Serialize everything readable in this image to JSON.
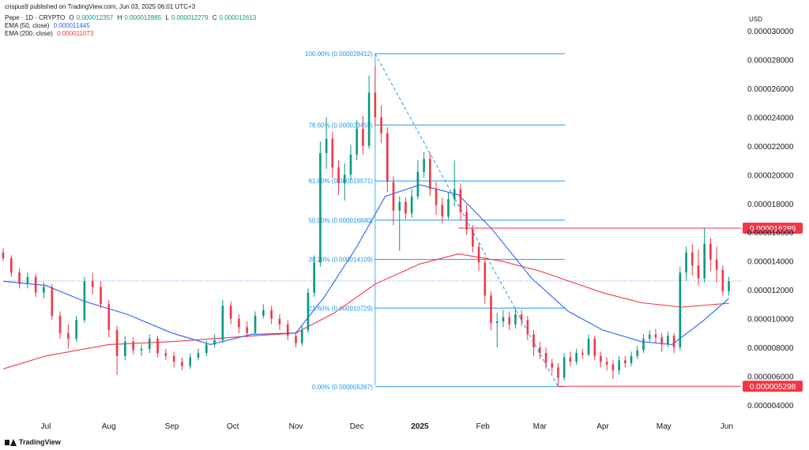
{
  "header": {
    "published": "crispus9 published on TradingView.com, Jun 03, 2025 06:01 UTC+3",
    "symbol": "Pepe · 1D · CRYPTO",
    "o_label": "O",
    "o_value": "0.000012357",
    "h_label": "H",
    "h_value": "0.000012885",
    "l_label": "L",
    "l_value": "0.000012279",
    "c_label": "C",
    "c_value": "0.000012613",
    "ema50_label": "EMA (50, close)",
    "ema50_value": "0.000011445",
    "ema200_label": "EMA (200, close)",
    "ema200_value": "0.000011073",
    "currency": "USD"
  },
  "footer": {
    "brand": "TradingView"
  },
  "colors": {
    "up": "#089981",
    "down": "#f23645",
    "ema50": "#2962ff",
    "ema200": "#f23645",
    "fib": "#2196f3",
    "hline": "#f23645"
  },
  "chart_data": {
    "type": "candlestick",
    "y_labels": [
      "0.000030000",
      "0.000028000",
      "0.000026000",
      "0.000024000",
      "0.000022000",
      "0.000020000",
      "0.000018000",
      "0.000016000",
      "0.000014000",
      "0.000012000",
      "0.000010000",
      "0.000008000",
      "0.000006000",
      "0.000004000"
    ],
    "y_values": [
      30.0,
      28.0,
      26.0,
      24.0,
      22.0,
      20.0,
      18.0,
      16.0,
      14.0,
      12.0,
      10.0,
      8.0,
      6.0,
      4.0
    ],
    "y_unit_scale": "1e-6",
    "ylim": [
      3.5,
      30.5
    ],
    "x_labels": [
      "Jul",
      "Aug",
      "Sep",
      "Oct",
      "Nov",
      "Dec",
      "2025",
      "Feb",
      "Mar",
      "Apr",
      "May",
      "Jun"
    ],
    "x_label_dates": [
      "2024-07-01",
      "2024-08-01",
      "2024-09-01",
      "2024-10-01",
      "2024-11-01",
      "2024-12-01",
      "2025-01-01",
      "2025-02-01",
      "2025-03-01",
      "2025-04-01",
      "2025-05-01",
      "2025-06-01"
    ],
    "x_range": [
      "2024-06-10",
      "2025-06-08"
    ],
    "candles": [
      [
        "2024-06-10",
        14.6,
        14.2,
        14.9,
        14.0
      ],
      [
        "2024-06-14",
        14.2,
        13.2,
        14.4,
        12.9
      ],
      [
        "2024-06-18",
        13.2,
        12.4,
        13.5,
        12.1
      ],
      [
        "2024-06-22",
        12.4,
        12.9,
        13.2,
        12.1
      ],
      [
        "2024-06-26",
        12.9,
        11.8,
        13.1,
        11.5
      ],
      [
        "2024-06-30",
        11.8,
        12.2,
        12.5,
        11.4
      ],
      [
        "2024-07-04",
        12.2,
        10.2,
        12.4,
        9.9
      ],
      [
        "2024-07-08",
        10.2,
        9.0,
        10.5,
        8.6
      ],
      [
        "2024-07-12",
        9.0,
        8.6,
        9.6,
        7.9
      ],
      [
        "2024-07-16",
        8.6,
        9.9,
        10.2,
        8.4
      ],
      [
        "2024-07-20",
        9.9,
        12.6,
        12.9,
        9.7
      ],
      [
        "2024-07-24",
        12.6,
        12.2,
        13.2,
        11.7
      ],
      [
        "2024-07-28",
        12.2,
        11.0,
        12.6,
        10.7
      ],
      [
        "2024-08-01",
        11.0,
        9.2,
        11.3,
        8.7
      ],
      [
        "2024-08-05",
        9.2,
        7.4,
        9.5,
        6.1
      ],
      [
        "2024-08-09",
        7.4,
        8.4,
        8.8,
        7.1
      ],
      [
        "2024-08-13",
        8.4,
        7.8,
        8.7,
        7.5
      ],
      [
        "2024-08-17",
        7.8,
        7.9,
        8.2,
        7.4
      ],
      [
        "2024-08-21",
        7.9,
        8.6,
        8.9,
        7.6
      ],
      [
        "2024-08-25",
        8.6,
        7.6,
        8.8,
        7.3
      ],
      [
        "2024-08-29",
        7.6,
        7.4,
        7.9,
        7.1
      ],
      [
        "2024-09-02",
        7.4,
        7.0,
        7.7,
        6.6
      ],
      [
        "2024-09-06",
        7.0,
        6.7,
        7.3,
        6.4
      ],
      [
        "2024-09-10",
        6.7,
        7.3,
        7.6,
        6.5
      ],
      [
        "2024-09-14",
        7.3,
        7.6,
        7.9,
        7.1
      ],
      [
        "2024-09-18",
        7.6,
        8.2,
        8.5,
        7.4
      ],
      [
        "2024-09-22",
        8.2,
        8.5,
        8.9,
        8.0
      ],
      [
        "2024-09-26",
        8.5,
        10.9,
        11.3,
        8.3
      ],
      [
        "2024-09-30",
        10.9,
        10.0,
        11.2,
        9.6
      ],
      [
        "2024-10-04",
        10.0,
        9.4,
        10.3,
        9.0
      ],
      [
        "2024-10-08",
        9.4,
        9.0,
        9.8,
        8.7
      ],
      [
        "2024-10-12",
        9.0,
        10.2,
        10.5,
        8.9
      ],
      [
        "2024-10-16",
        10.2,
        10.6,
        11.0,
        10.0
      ],
      [
        "2024-10-20",
        10.6,
        10.0,
        10.9,
        9.6
      ],
      [
        "2024-10-24",
        10.0,
        9.6,
        10.3,
        9.2
      ],
      [
        "2024-10-28",
        9.6,
        8.8,
        9.9,
        8.5
      ],
      [
        "2024-11-01",
        8.8,
        8.3,
        9.1,
        8.0
      ],
      [
        "2024-11-04",
        8.3,
        9.2,
        9.5,
        8.1
      ],
      [
        "2024-11-07",
        9.2,
        11.8,
        12.1,
        9.0
      ],
      [
        "2024-11-10",
        11.8,
        13.9,
        14.4,
        11.5
      ],
      [
        "2024-11-13",
        13.9,
        21.5,
        22.3,
        13.6
      ],
      [
        "2024-11-16",
        21.5,
        22.5,
        24.0,
        20.4
      ],
      [
        "2024-11-19",
        22.5,
        20.5,
        23.0,
        19.8
      ],
      [
        "2024-11-22",
        20.5,
        19.4,
        21.0,
        18.6
      ],
      [
        "2024-11-25",
        19.4,
        20.0,
        20.8,
        18.2
      ],
      [
        "2024-11-28",
        20.0,
        21.4,
        22.1,
        19.6
      ],
      [
        "2024-12-01",
        21.4,
        23.2,
        23.8,
        21.0
      ],
      [
        "2024-12-04",
        23.2,
        22.0,
        24.1,
        21.4
      ],
      [
        "2024-12-07",
        22.0,
        25.7,
        26.9,
        21.8
      ],
      [
        "2024-12-10",
        25.7,
        24.0,
        27.6,
        23.3
      ],
      [
        "2024-12-13",
        24.0,
        22.9,
        24.8,
        22.2
      ],
      [
        "2024-12-16",
        22.9,
        19.5,
        23.3,
        18.8
      ],
      [
        "2024-12-19",
        19.5,
        17.5,
        19.9,
        16.5
      ],
      [
        "2024-12-22",
        17.5,
        18.1,
        18.5,
        14.7
      ],
      [
        "2024-12-25",
        18.1,
        17.3,
        18.4,
        16.9
      ],
      [
        "2024-12-28",
        17.3,
        18.5,
        19.0,
        17.0
      ],
      [
        "2024-12-31",
        18.5,
        20.2,
        21.0,
        18.3
      ],
      [
        "2025-01-03",
        20.2,
        21.1,
        21.6,
        19.8
      ],
      [
        "2025-01-06",
        21.1,
        19.0,
        21.5,
        18.5
      ],
      [
        "2025-01-09",
        19.0,
        17.9,
        19.5,
        17.2
      ],
      [
        "2025-01-12",
        17.9,
        17.1,
        18.4,
        16.6
      ],
      [
        "2025-01-15",
        17.1,
        18.3,
        18.8,
        16.9
      ],
      [
        "2025-01-18",
        18.3,
        19.0,
        21.0,
        17.8
      ],
      [
        "2025-01-21",
        19.0,
        17.4,
        19.4,
        16.8
      ],
      [
        "2025-01-24",
        17.4,
        16.2,
        17.9,
        15.8
      ],
      [
        "2025-01-27",
        16.2,
        15.0,
        16.5,
        14.6
      ],
      [
        "2025-01-30",
        15.0,
        13.9,
        15.3,
        13.3
      ],
      [
        "2025-02-02",
        13.9,
        11.6,
        14.1,
        11.0
      ],
      [
        "2025-02-05",
        11.6,
        9.7,
        11.9,
        9.2
      ],
      [
        "2025-02-08",
        9.7,
        9.8,
        10.4,
        8.0
      ],
      [
        "2025-02-11",
        9.8,
        10.1,
        10.6,
        9.4
      ],
      [
        "2025-02-14",
        10.1,
        9.6,
        10.5,
        9.2
      ],
      [
        "2025-02-17",
        9.6,
        10.3,
        10.7,
        9.3
      ],
      [
        "2025-02-20",
        10.3,
        9.9,
        10.6,
        9.5
      ],
      [
        "2025-02-23",
        9.9,
        8.9,
        10.2,
        8.5
      ],
      [
        "2025-02-26",
        8.9,
        8.0,
        9.2,
        7.4
      ],
      [
        "2025-03-01",
        8.0,
        7.6,
        8.4,
        7.2
      ],
      [
        "2025-03-04",
        7.6,
        6.9,
        8.0,
        6.5
      ],
      [
        "2025-03-07",
        6.9,
        6.6,
        7.2,
        6.2
      ],
      [
        "2025-03-10",
        6.6,
        5.9,
        6.9,
        5.3
      ],
      [
        "2025-03-13",
        5.9,
        7.3,
        7.6,
        5.7
      ],
      [
        "2025-03-16",
        7.3,
        7.0,
        7.7,
        6.7
      ],
      [
        "2025-03-19",
        7.0,
        7.6,
        7.9,
        6.8
      ],
      [
        "2025-03-22",
        7.6,
        7.5,
        7.9,
        7.2
      ],
      [
        "2025-03-25",
        7.5,
        8.6,
        8.9,
        7.4
      ],
      [
        "2025-03-28",
        8.6,
        7.4,
        8.8,
        7.1
      ],
      [
        "2025-03-31",
        7.4,
        7.0,
        7.7,
        6.6
      ],
      [
        "2025-04-03",
        7.0,
        6.8,
        7.3,
        6.4
      ],
      [
        "2025-04-06",
        6.8,
        6.4,
        7.1,
        5.8
      ],
      [
        "2025-04-09",
        6.4,
        7.1,
        7.4,
        6.1
      ],
      [
        "2025-04-12",
        7.1,
        6.9,
        7.4,
        6.6
      ],
      [
        "2025-04-15",
        6.9,
        7.4,
        7.7,
        6.7
      ],
      [
        "2025-04-18",
        7.4,
        7.8,
        8.1,
        7.2
      ],
      [
        "2025-04-21",
        7.8,
        8.6,
        8.9,
        7.6
      ],
      [
        "2025-04-24",
        8.6,
        8.9,
        9.2,
        8.4
      ],
      [
        "2025-04-27",
        8.9,
        8.7,
        9.3,
        8.3
      ],
      [
        "2025-04-30",
        8.7,
        8.2,
        9.0,
        7.7
      ],
      [
        "2025-05-03",
        8.2,
        8.8,
        9.1,
        8.0
      ],
      [
        "2025-05-06",
        8.8,
        8.0,
        9.0,
        7.6
      ],
      [
        "2025-05-09",
        8.0,
        13.2,
        13.6,
        7.8
      ],
      [
        "2025-05-12",
        13.2,
        14.6,
        15.0,
        12.6
      ],
      [
        "2025-05-15",
        14.6,
        13.7,
        15.2,
        13.0
      ],
      [
        "2025-05-18",
        13.7,
        12.8,
        14.8,
        12.3
      ],
      [
        "2025-05-21",
        12.8,
        15.2,
        16.3,
        12.5
      ],
      [
        "2025-05-24",
        15.2,
        14.1,
        15.6,
        13.3
      ],
      [
        "2025-05-27",
        14.1,
        13.4,
        15.0,
        12.5
      ],
      [
        "2025-05-30",
        13.4,
        11.9,
        13.7,
        11.6
      ],
      [
        "2025-06-02",
        11.9,
        12.6,
        12.9,
        11.6
      ]
    ],
    "ema50": [
      [
        "2024-06-10",
        12.6
      ],
      [
        "2024-07-01",
        12.3
      ],
      [
        "2024-07-20",
        11.2
      ],
      [
        "2024-08-10",
        10.3
      ],
      [
        "2024-09-01",
        9.0
      ],
      [
        "2024-09-20",
        8.2
      ],
      [
        "2024-10-10",
        8.9
      ],
      [
        "2024-11-01",
        9.0
      ],
      [
        "2024-11-15",
        11.5
      ],
      [
        "2024-12-01",
        15.0
      ],
      [
        "2024-12-15",
        18.5
      ],
      [
        "2025-01-01",
        19.3
      ],
      [
        "2025-01-20",
        18.6
      ],
      [
        "2025-02-05",
        16.3
      ],
      [
        "2025-02-25",
        12.8
      ],
      [
        "2025-03-15",
        10.5
      ],
      [
        "2025-04-01",
        9.2
      ],
      [
        "2025-04-20",
        8.4
      ],
      [
        "2025-05-05",
        8.2
      ],
      [
        "2025-05-20",
        9.8
      ],
      [
        "2025-06-02",
        11.4
      ]
    ],
    "ema200": [
      [
        "2024-06-10",
        6.5
      ],
      [
        "2024-07-01",
        7.4
      ],
      [
        "2024-08-01",
        8.2
      ],
      [
        "2024-09-01",
        8.4
      ],
      [
        "2024-10-01",
        8.7
      ],
      [
        "2024-11-01",
        9.0
      ],
      [
        "2024-11-20",
        10.4
      ],
      [
        "2024-12-10",
        12.4
      ],
      [
        "2025-01-01",
        13.8
      ],
      [
        "2025-01-20",
        14.5
      ],
      [
        "2025-02-10",
        14.0
      ],
      [
        "2025-03-01",
        13.3
      ],
      [
        "2025-04-01",
        11.8
      ],
      [
        "2025-04-20",
        11.1
      ],
      [
        "2025-05-10",
        10.8
      ],
      [
        "2025-06-02",
        11.07
      ]
    ],
    "fibonacci": [
      {
        "label": "100.00% (0.000028412)",
        "value": 28.412
      },
      {
        "label": "78.60% (0.000023459)",
        "value": 23.459
      },
      {
        "label": "61.80% (0.000019571)",
        "value": 19.571
      },
      {
        "label": "50.00% (0.000016840)",
        "value": 16.84
      },
      {
        "label": "38.20% (0.000014109)",
        "value": 14.109
      },
      {
        "label": "23.60% (0.000010729)",
        "value": 10.729
      },
      {
        "label": "0.00% (0.000005267)",
        "value": 5.267
      }
    ],
    "fib_start": "2024-12-10",
    "fib_end": "2025-03-10",
    "price_lines": [
      {
        "label": "0.000016289",
        "value": 16.289,
        "from": "2025-01-20"
      },
      {
        "label": "0.000005298",
        "value": 5.298,
        "from": "2025-03-10"
      }
    ],
    "current_price": 12.613
  }
}
